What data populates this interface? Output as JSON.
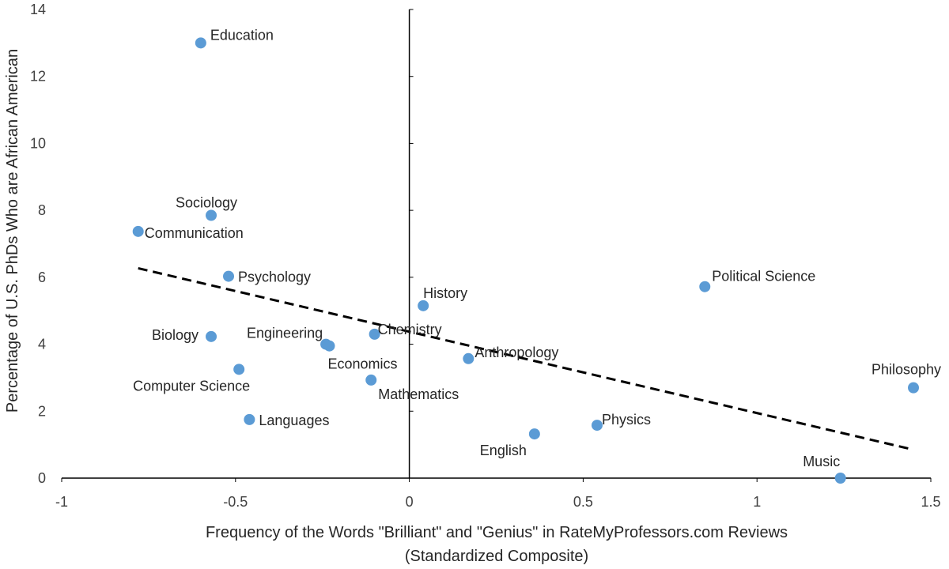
{
  "chart_data": {
    "type": "scatter",
    "title": "",
    "xlabel_lines": [
      "Frequency of the Words \"Brilliant\" and \"Genius\" in RateMyProfessors.com Reviews",
      "(Standardized Composite)"
    ],
    "ylabel": "Percentage of U.S. PhDs Who are African American",
    "xlim": [
      -1,
      1.5
    ],
    "ylim": [
      0,
      14
    ],
    "xticks": [
      -1,
      -0.5,
      0,
      0.5,
      1,
      1.5
    ],
    "xtick_labels": [
      "-1",
      "-0.5",
      "0",
      "0.5",
      "1",
      "1.5"
    ],
    "yticks": [
      0,
      2,
      4,
      6,
      8,
      10,
      12,
      14
    ],
    "ytick_labels": [
      "0",
      "2",
      "4",
      "6",
      "8",
      "10",
      "12",
      "14"
    ],
    "point_color": "#5b9bd5",
    "trendline": {
      "style": "dashed",
      "color": "#000000",
      "x": [
        -0.78,
        1.45
      ],
      "y": [
        6.27,
        0.85
      ]
    },
    "points": [
      {
        "label": "Education",
        "x": -0.6,
        "y": 13.0,
        "anchor": "start"
      },
      {
        "label": "Sociology",
        "x": -0.57,
        "y": 7.85,
        "anchor": "middle"
      },
      {
        "label": "Communication",
        "x": -0.78,
        "y": 7.37,
        "anchor": "start"
      },
      {
        "label": "Psychology",
        "x": -0.52,
        "y": 6.03,
        "anchor": "start"
      },
      {
        "label": "Biology",
        "x": -0.57,
        "y": 4.23,
        "anchor": "end"
      },
      {
        "label": "Computer Science",
        "x": -0.49,
        "y": 3.25,
        "anchor": "end"
      },
      {
        "label": "Languages",
        "x": -0.46,
        "y": 1.75,
        "anchor": "start"
      },
      {
        "label": "Engineering",
        "x": -0.24,
        "y": 4.0,
        "anchor": "end"
      },
      {
        "label": "Economics",
        "x": -0.23,
        "y": 3.95,
        "anchor": "start"
      },
      {
        "label": "Chemistry",
        "x": -0.1,
        "y": 4.3,
        "anchor": "start"
      },
      {
        "label": "Mathematics",
        "x": -0.11,
        "y": 2.93,
        "anchor": "start"
      },
      {
        "label": "History",
        "x": 0.04,
        "y": 5.15,
        "anchor": "start"
      },
      {
        "label": "Anthropology",
        "x": 0.17,
        "y": 3.57,
        "anchor": "start"
      },
      {
        "label": "English",
        "x": 0.36,
        "y": 1.32,
        "anchor": "end"
      },
      {
        "label": "Physics",
        "x": 0.54,
        "y": 1.58,
        "anchor": "start"
      },
      {
        "label": "Political Science",
        "x": 0.85,
        "y": 5.72,
        "anchor": "start"
      },
      {
        "label": "Philosophy",
        "x": 1.45,
        "y": 2.7,
        "anchor": "middle"
      },
      {
        "label": "Music",
        "x": 1.24,
        "y": 0.0,
        "anchor": "middle"
      }
    ]
  }
}
